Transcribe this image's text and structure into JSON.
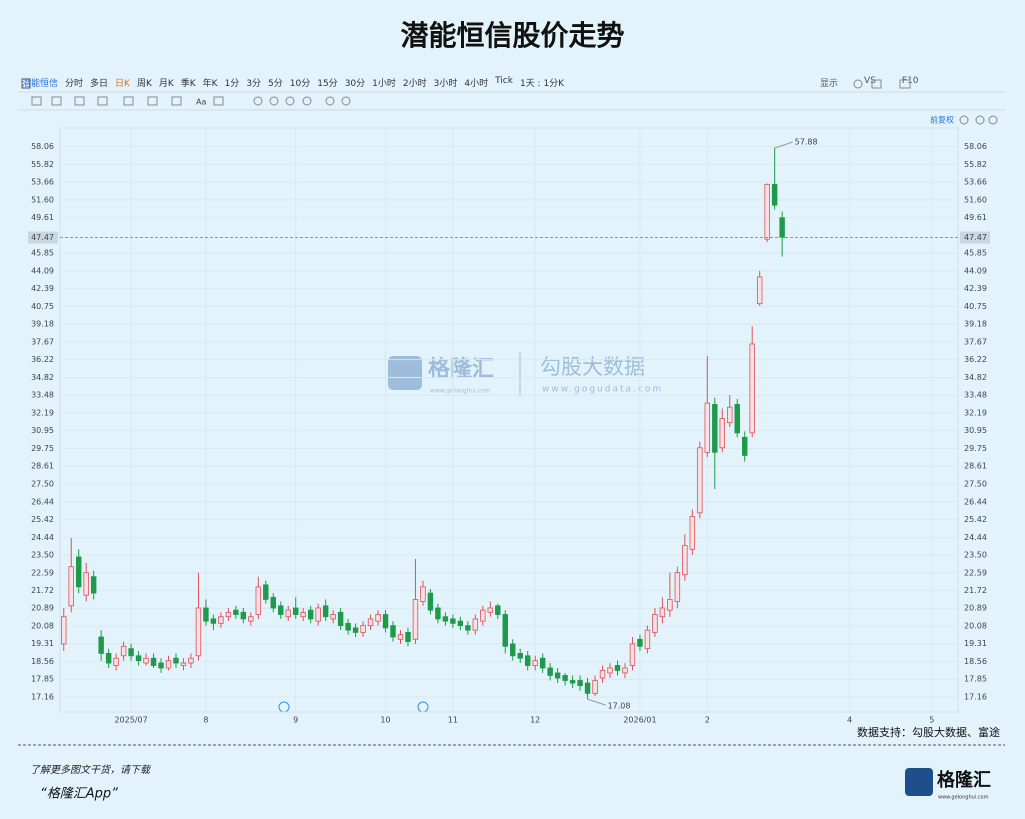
{
  "header": {
    "title": "潜能恒信股价走势"
  },
  "toolbar": {
    "items": [
      "潜能恒信",
      "分时",
      "多日",
      "日K",
      "周K",
      "月K",
      "季K",
      "年K",
      "1分",
      "3分",
      "5分",
      "10分",
      "15分",
      "30分",
      "1小时",
      "2小时",
      "3小时",
      "4小时",
      "Tick",
      "1天 : 1分K"
    ],
    "right": [
      "显示",
      "VS",
      "F10"
    ],
    "font_label": "Aa"
  },
  "chart_data": {
    "type": "candlestick",
    "log_scale": true,
    "grid": true,
    "up_color": "#e0505a",
    "down_color": "#1f9a4a",
    "ylim": [
      16.6,
      60.5
    ],
    "yticks": [
      17.16,
      17.85,
      18.56,
      19.31,
      20.08,
      20.89,
      21.72,
      22.59,
      {
        "value": 23.5,
        "label": "23.50"
      },
      24.44,
      25.42,
      26.44,
      {
        "value": 27.5,
        "label": "27.50"
      },
      28.61,
      29.75,
      30.95,
      32.19,
      33.48,
      34.82,
      36.22,
      37.67,
      39.18,
      40.75,
      42.39,
      44.09,
      45.85,
      49.61,
      {
        "value": 51.6,
        "label": "51.60"
      },
      53.66,
      55.82,
      58.06
    ],
    "last_price": 47.47,
    "high_label": 57.88,
    "low_label": 17.08,
    "adjust_label": "前复权",
    "categories": [
      null,
      null,
      null,
      null,
      null,
      null,
      null,
      null,
      null,
      "2025/07",
      null,
      null,
      null,
      null,
      null,
      null,
      null,
      null,
      null,
      "8",
      null,
      null,
      null,
      null,
      null,
      null,
      null,
      null,
      null,
      null,
      null,
      "9",
      null,
      null,
      null,
      null,
      null,
      null,
      null,
      null,
      null,
      null,
      null,
      "10",
      null,
      null,
      null,
      null,
      null,
      null,
      null,
      null,
      "11",
      null,
      null,
      null,
      null,
      null,
      null,
      null,
      null,
      null,
      null,
      "12",
      null,
      null,
      null,
      null,
      null,
      null,
      null,
      null,
      null,
      null,
      null,
      null,
      null,
      "2026/01",
      null,
      null,
      null,
      null,
      null,
      null,
      null,
      null,
      "2",
      null,
      null,
      null,
      null,
      null,
      null,
      null,
      null,
      null,
      null,
      null,
      null,
      null,
      null,
      null,
      null,
      null,
      null,
      "4",
      null,
      null,
      null,
      null,
      null,
      null,
      null,
      null,
      null,
      null,
      "5",
      null,
      null,
      null
    ],
    "open": [
      19.3,
      21.0,
      23.4,
      21.5,
      22.4,
      19.6,
      18.9,
      18.4,
      18.8,
      19.1,
      18.8,
      18.5,
      18.7,
      18.5,
      18.3,
      18.7,
      18.4,
      18.5,
      18.8,
      20.9,
      20.4,
      20.2,
      20.5,
      20.8,
      20.7,
      20.3,
      20.6,
      22.0,
      21.4,
      21.0,
      20.5,
      20.9,
      20.5,
      20.8,
      20.3,
      21.0,
      20.4,
      20.7,
      20.2,
      20.0,
      19.8,
      20.1,
      20.3,
      20.6,
      20.1,
      19.5,
      19.8,
      19.5,
      21.2,
      21.6,
      20.9,
      20.5,
      20.4,
      20.3,
      20.1,
      19.9,
      20.3,
      20.7,
      21.0,
      20.6,
      19.3,
      18.9,
      18.8,
      18.4,
      18.7,
      18.3,
      18.1,
      18.0,
      17.8,
      17.8,
      17.7,
      17.3,
      17.9,
      18.1,
      18.4,
      18.1,
      18.4,
      19.5,
      19.1,
      19.8,
      20.5,
      20.8,
      21.2,
      22.5,
      23.8,
      25.8,
      29.5,
      32.8,
      29.8,
      31.5,
      32.8,
      30.5,
      30.8,
      41.0,
      47.3,
      53.4,
      49.6,
      null,
      null,
      null,
      null,
      null,
      null,
      null,
      null,
      null,
      null,
      null,
      null,
      null,
      null,
      null,
      null,
      null,
      null,
      null,
      null,
      null,
      null,
      null
    ],
    "high": [
      20.9,
      24.4,
      23.8,
      23.1,
      22.7,
      19.9,
      19.1,
      18.9,
      19.4,
      19.3,
      19.0,
      18.9,
      18.9,
      18.7,
      18.8,
      18.9,
      18.7,
      18.9,
      22.6,
      21.3,
      20.6,
      20.7,
      20.9,
      21.0,
      20.9,
      20.7,
      22.4,
      22.2,
      21.6,
      21.2,
      21.0,
      21.4,
      20.9,
      21.0,
      21.1,
      21.3,
      20.8,
      20.9,
      20.4,
      20.2,
      20.3,
      20.6,
      20.8,
      20.8,
      20.3,
      19.9,
      20.0,
      23.3,
      22.2,
      21.8,
      21.1,
      20.7,
      20.6,
      20.5,
      20.3,
      20.6,
      21.0,
      21.2,
      21.1,
      20.8,
      19.5,
      19.1,
      19.0,
      18.8,
      18.9,
      18.5,
      18.3,
      18.1,
      18.0,
      18.0,
      17.9,
      18.0,
      18.4,
      18.5,
      18.6,
      18.5,
      19.6,
      19.7,
      20.1,
      20.9,
      21.4,
      22.6,
      22.9,
      24.6,
      26.0,
      30.2,
      36.5,
      33.3,
      32.5,
      33.5,
      33.2,
      30.9,
      39.0,
      44.1,
      53.5,
      57.88,
      50.3,
      null,
      null,
      null,
      null,
      null,
      null,
      null,
      null,
      null,
      null,
      null,
      null,
      null,
      null,
      null,
      null,
      null,
      null,
      null,
      null,
      null,
      null,
      null
    ],
    "low": [
      19.0,
      20.7,
      21.6,
      21.2,
      21.3,
      18.6,
      18.3,
      18.2,
      18.6,
      18.6,
      18.4,
      18.4,
      18.3,
      18.1,
      18.2,
      18.3,
      18.2,
      18.3,
      18.6,
      20.1,
      19.9,
      20.0,
      20.3,
      20.4,
      20.2,
      20.1,
      20.4,
      21.1,
      20.7,
      20.4,
      20.3,
      20.4,
      20.3,
      20.2,
      20.1,
      20.3,
      20.2,
      19.9,
      19.7,
      19.6,
      19.6,
      19.9,
      20.1,
      19.8,
      19.4,
      19.3,
      19.2,
      19.3,
      21.0,
      20.6,
      20.2,
      20.1,
      20.0,
      19.9,
      19.7,
      19.7,
      20.1,
      20.5,
      20.4,
      18.9,
      18.6,
      18.5,
      18.2,
      18.2,
      18.1,
      17.8,
      17.7,
      17.6,
      17.5,
      17.4,
      17.08,
      17.2,
      17.7,
      17.9,
      18.0,
      17.9,
      18.2,
      19.0,
      18.9,
      19.6,
      20.2,
      20.5,
      20.9,
      22.2,
      23.5,
      25.5,
      29.2,
      27.2,
      29.5,
      31.2,
      30.5,
      28.9,
      30.5,
      40.8,
      47.0,
      50.5,
      45.5,
      null,
      null,
      null,
      null,
      null,
      null,
      null,
      null,
      null,
      null,
      null,
      null,
      null,
      null,
      null,
      null,
      null,
      null,
      null,
      null,
      null,
      null,
      null
    ],
    "close": [
      20.5,
      22.9,
      21.9,
      22.6,
      21.6,
      18.9,
      18.5,
      18.7,
      19.2,
      18.8,
      18.6,
      18.7,
      18.4,
      18.3,
      18.6,
      18.5,
      18.5,
      18.7,
      20.9,
      20.3,
      20.2,
      20.5,
      20.7,
      20.6,
      20.4,
      20.5,
      21.9,
      21.3,
      20.9,
      20.6,
      20.8,
      20.6,
      20.7,
      20.4,
      20.9,
      20.5,
      20.6,
      20.1,
      19.9,
      19.8,
      20.1,
      20.4,
      20.6,
      20.0,
      19.6,
      19.7,
      19.4,
      21.3,
      21.9,
      20.8,
      20.4,
      20.3,
      20.2,
      20.1,
      19.9,
      20.4,
      20.8,
      20.9,
      20.6,
      19.2,
      18.8,
      18.7,
      18.4,
      18.6,
      18.3,
      18.0,
      17.9,
      17.8,
      17.7,
      17.6,
      17.3,
      17.8,
      18.2,
      18.3,
      18.2,
      18.3,
      19.3,
      19.2,
      19.9,
      20.6,
      20.9,
      21.3,
      22.6,
      24.0,
      25.6,
      29.8,
      32.9,
      29.5,
      31.8,
      32.6,
      30.8,
      29.3,
      37.5,
      43.5,
      53.4,
      51.0,
      47.47,
      null,
      null,
      null,
      null,
      null,
      null,
      null,
      null,
      null,
      null,
      null,
      null,
      null,
      null,
      null,
      null,
      null,
      null,
      null,
      null,
      null,
      null,
      null
    ]
  },
  "watermark": {
    "brand": "格隆汇",
    "brand_url": "www.gelonghui.com",
    "data": "勾股大数据",
    "data_url": "www.gogudata.com"
  },
  "source": "数据支持：勾股大数据、富途",
  "footer": {
    "line1": "了解更多图文干货，请下载",
    "line2": "“格隆汇App”",
    "logo": "格隆汇",
    "logo_url": "www.gelonghui.com"
  }
}
